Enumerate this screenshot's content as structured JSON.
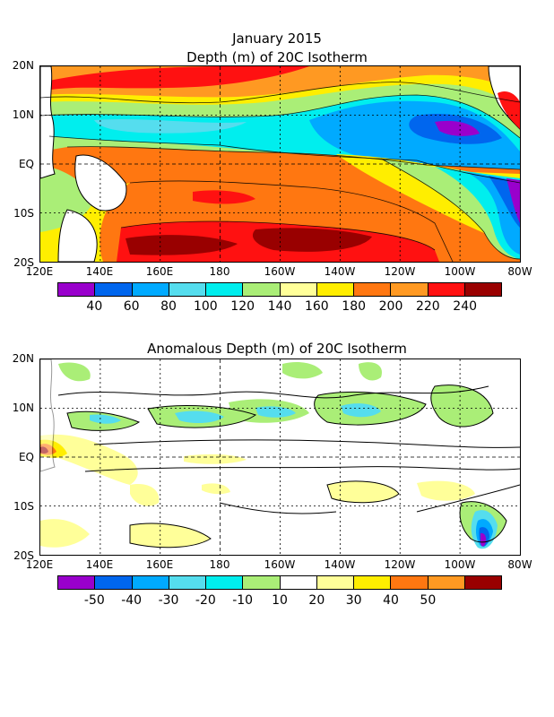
{
  "title": {
    "date": "January 2015",
    "top": "Depth (m) of 20C Isotherm",
    "bottom": "Anomalous Depth (m) of 20C Isotherm"
  },
  "lat_labels": [
    "20N",
    "10N",
    "EQ",
    "10S",
    "20S"
  ],
  "lon_labels": [
    "120E",
    "140E",
    "160E",
    "180",
    "160W",
    "140W",
    "120W",
    "100W",
    "80W"
  ],
  "colorbars": {
    "top": {
      "colors": [
        "#9900cc",
        "#0066ee",
        "#00aaff",
        "#55ddee",
        "#00eeee",
        "#aaee77",
        "#ffff99",
        "#ffee00",
        "#ff7711",
        "#ff9922",
        "#ff1111",
        "#990000"
      ],
      "labels": [
        "40",
        "60",
        "80",
        "100",
        "120",
        "140",
        "160",
        "180",
        "200",
        "220",
        "240"
      ]
    },
    "bottom": {
      "colors": [
        "#9900cc",
        "#0066ee",
        "#00aaff",
        "#55ddee",
        "#00eeee",
        "#aaee77",
        "#ffffff",
        "#ffff99",
        "#ffee00",
        "#ff7711",
        "#ff9922",
        "#990000"
      ],
      "labels": [
        "-50",
        "-40",
        "-30",
        "-20",
        "-10",
        "10",
        "20",
        "30",
        "40",
        "50"
      ]
    }
  },
  "chart_data": [
    {
      "type": "heatmap",
      "title": "January 2015 Depth (m) of 20C Isotherm",
      "x": [
        "120E",
        "140E",
        "160E",
        "180",
        "160W",
        "140W",
        "120W",
        "100W",
        "80W"
      ],
      "y": [
        "20N",
        "10N",
        "EQ",
        "10S",
        "20S"
      ],
      "xlim": [
        "120E",
        "80W"
      ],
      "ylim": [
        "20S",
        "20N"
      ],
      "color_levels": [
        40,
        60,
        80,
        100,
        120,
        140,
        160,
        180,
        200,
        220,
        240
      ],
      "grid": true,
      "zones": [
        {
          "lat": "20N-15N",
          "lon": "130E-180",
          "depth_m": 200
        },
        {
          "lat": "15N-10N",
          "lon": "140E-160W",
          "depth_m": 140
        },
        {
          "lat": "10N-5N",
          "lon": "130E-150W",
          "depth_m": 110
        },
        {
          "lat": "10N-5N",
          "lon": "140W-100W",
          "depth_m": 60
        },
        {
          "lat": "5N-2N",
          "lon": "130E-180",
          "depth_m": 190
        },
        {
          "lat": "EQ",
          "lon": "150E-160W",
          "depth_m": 190
        },
        {
          "lat": "EQ",
          "lon": "140W-110W",
          "depth_m": 130
        },
        {
          "lat": "EQ",
          "lon": "100W-80W",
          "depth_m": 50
        },
        {
          "lat": "5S-10S",
          "lon": "170E-180",
          "depth_m": 240
        },
        {
          "lat": "15S-20S",
          "lon": "150E-140W",
          "depth_m": 250
        },
        {
          "lat": "10S-20S",
          "lon": "100W-80W",
          "depth_m": 80
        }
      ]
    },
    {
      "type": "heatmap",
      "title": "Anomalous Depth (m) of 20C Isotherm",
      "x": [
        "120E",
        "140E",
        "160E",
        "180",
        "160W",
        "140W",
        "120W",
        "100W",
        "80W"
      ],
      "y": [
        "20N",
        "10N",
        "EQ",
        "10S",
        "20S"
      ],
      "xlim": [
        "120E",
        "80W"
      ],
      "ylim": [
        "20S",
        "20N"
      ],
      "color_levels": [
        -50,
        -40,
        -30,
        -20,
        -10,
        10,
        20,
        30,
        40,
        50
      ],
      "grid": true,
      "zones": [
        {
          "lat": "5N-10N",
          "lon": "170E-180",
          "anomaly_m": -25
        },
        {
          "lat": "5N-10N",
          "lon": "170W-160W",
          "anomaly_m": -25
        },
        {
          "lat": "5N-10N",
          "lon": "140W-130W",
          "anomaly_m": -20
        },
        {
          "lat": "EQ",
          "lon": "120E-125E",
          "anomaly_m": 40
        },
        {
          "lat": "5S-10S",
          "lon": "150W-130W",
          "anomaly_m": 15
        },
        {
          "lat": "15S-20S",
          "lon": "105W-95W",
          "anomaly_m": -50
        },
        {
          "lat": "15S-20S",
          "lon": "145E-175E",
          "anomaly_m": 15
        }
      ]
    }
  ]
}
